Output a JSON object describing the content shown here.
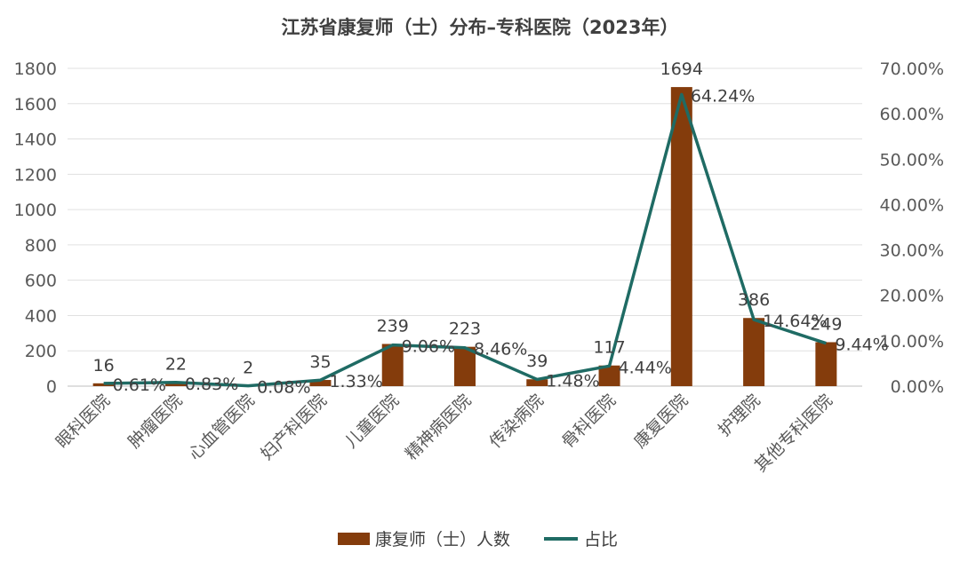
{
  "chart_data": {
    "type": "bar",
    "title": "江苏省康复师（士）分布–专科医院（2023年）",
    "categories": [
      "眼科医院",
      "肿瘤医院",
      "心血管医院",
      "妇产科医院",
      "儿童医院",
      "精神病医院",
      "传染病院",
      "骨科医院",
      "康复医院",
      "护理院",
      "其他专科医院"
    ],
    "series": [
      {
        "name": "康复师（士）人数",
        "type": "bar",
        "axis": "left",
        "values": [
          16,
          22,
          2,
          35,
          239,
          223,
          39,
          117,
          1694,
          386,
          249
        ],
        "labels": [
          "16",
          "22",
          "2",
          "35",
          "239",
          "223",
          "39",
          "117",
          "1694",
          "386",
          "249"
        ],
        "color": "#843C0C"
      },
      {
        "name": "占比",
        "type": "line",
        "axis": "right",
        "values": [
          0.61,
          0.83,
          0.08,
          1.33,
          9.06,
          8.46,
          1.48,
          4.44,
          64.24,
          14.64,
          9.44
        ],
        "labels": [
          "0.61%",
          "0.83%",
          "0.08%",
          "1.33%",
          "9.06%",
          "8.46%",
          "1.48%",
          "4.44%",
          "64.24%",
          "14.64%",
          "9.44%"
        ],
        "color": "#1F6B64"
      }
    ],
    "y_left": {
      "min": 0,
      "max": 1800,
      "ticks": [
        "0",
        "200",
        "400",
        "600",
        "800",
        "1000",
        "1200",
        "1400",
        "1600",
        "1800"
      ]
    },
    "y_right": {
      "min": 0,
      "max": 70,
      "ticks": [
        "0.00%",
        "10.00%",
        "20.00%",
        "30.00%",
        "40.00%",
        "50.00%",
        "60.00%",
        "70.00%"
      ]
    },
    "grid": true,
    "legend_position": "bottom"
  }
}
